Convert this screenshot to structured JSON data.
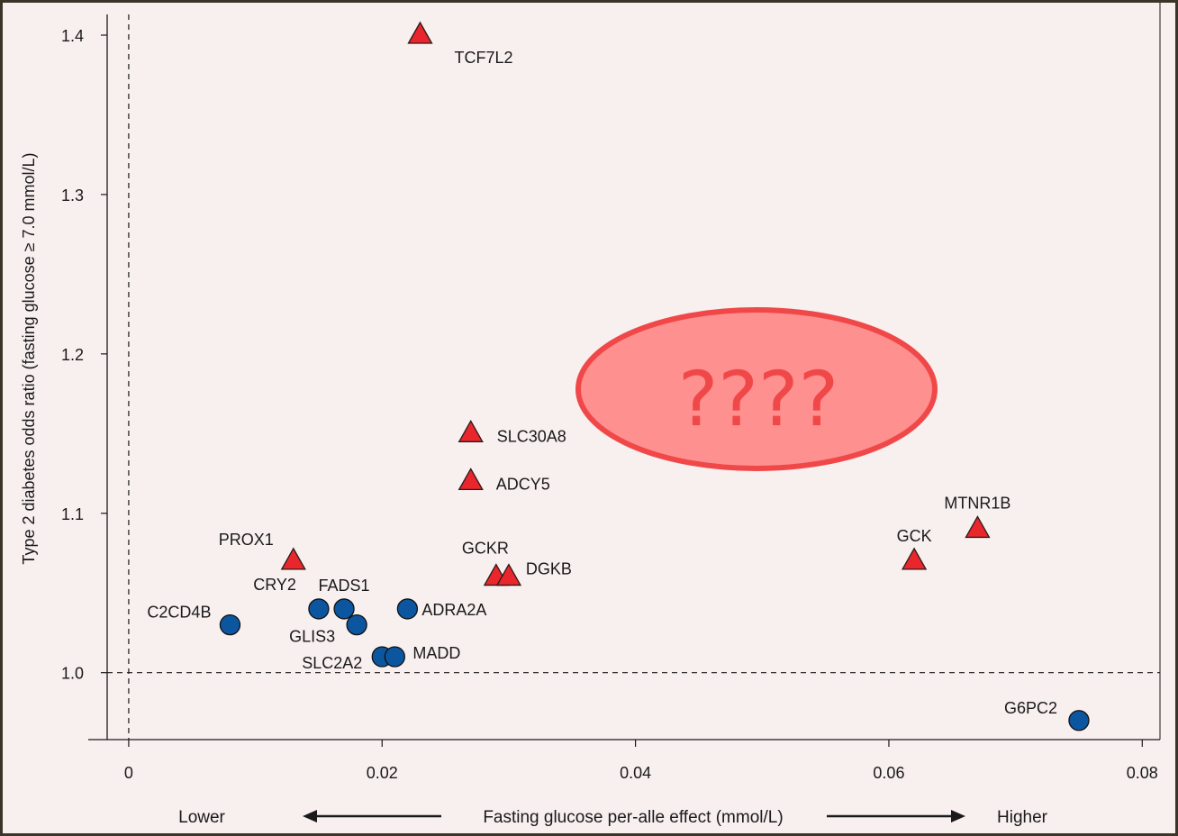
{
  "chart_data": {
    "type": "scatter",
    "ylabel": "Type 2 diabetes odds ratio (fasting glucose ≥ 7.0 mmol/L)",
    "xlabel": "Fasting glucose per-alle effect (mmol/L)",
    "x_direction_labels": {
      "left": "Lower",
      "right": "Higher"
    },
    "xlim": [
      -0.0017,
      0.0814
    ],
    "ylim": [
      0.958,
      1.413
    ],
    "x_ticks": [
      0,
      0.02,
      0.04,
      0.06,
      0.08
    ],
    "x_tick_labels": [
      "0",
      "0.02",
      "0.04",
      "0.06",
      "0.08"
    ],
    "y_ticks": [
      1.0,
      1.1,
      1.2,
      1.3,
      1.4
    ],
    "y_tick_labels": [
      "1.0",
      "1.1",
      "1.2",
      "1.3",
      "1.4"
    ],
    "reference_lines": {
      "x": 0,
      "y": 1.0,
      "style": "dashed"
    },
    "grid": false,
    "colors": {
      "triangle": "#e8262b",
      "circle": "#0c56a0",
      "mask": "#ff9090",
      "mask_border": "#f04848"
    },
    "masked_annotation": "????",
    "points": [
      {
        "label": "TCF7L2",
        "x": 0.023,
        "y": 1.4,
        "marker": "triangle"
      },
      {
        "label": "SLC30A8",
        "x": 0.027,
        "y": 1.15,
        "marker": "triangle"
      },
      {
        "label": "ADCY5",
        "x": 0.027,
        "y": 1.12,
        "marker": "triangle"
      },
      {
        "label": "PROX1",
        "x": 0.013,
        "y": 1.07,
        "marker": "triangle"
      },
      {
        "label": "GCKR",
        "x": 0.029,
        "y": 1.06,
        "marker": "triangle"
      },
      {
        "label": "DGKB",
        "x": 0.03,
        "y": 1.06,
        "marker": "triangle"
      },
      {
        "label": "GCK",
        "x": 0.062,
        "y": 1.07,
        "marker": "triangle"
      },
      {
        "label": "MTNR1B",
        "x": 0.067,
        "y": 1.09,
        "marker": "triangle"
      },
      {
        "label": "C2CD4B",
        "x": 0.008,
        "y": 1.03,
        "marker": "circle"
      },
      {
        "label": "CRY2",
        "x": 0.015,
        "y": 1.04,
        "marker": "circle"
      },
      {
        "label": "FADS1",
        "x": 0.017,
        "y": 1.04,
        "marker": "circle"
      },
      {
        "label": "GLIS3",
        "x": 0.018,
        "y": 1.03,
        "marker": "circle"
      },
      {
        "label": "ADRA2A",
        "x": 0.022,
        "y": 1.04,
        "marker": "circle"
      },
      {
        "label": "SLC2A2",
        "x": 0.02,
        "y": 1.01,
        "marker": "circle"
      },
      {
        "label": "MADD",
        "x": 0.021,
        "y": 1.01,
        "marker": "circle"
      },
      {
        "label": "G6PC2",
        "x": 0.075,
        "y": 0.97,
        "marker": "circle"
      }
    ]
  }
}
